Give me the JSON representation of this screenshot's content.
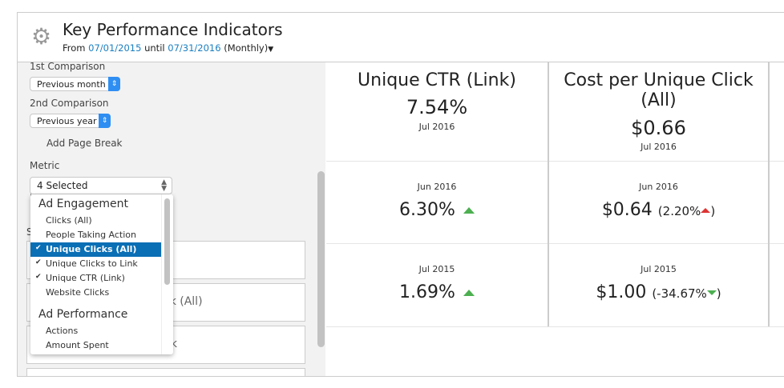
{
  "header": {
    "title": "Key Performance Indicators",
    "from_label": "From",
    "from_date": "07/01/2015",
    "until_label": "until",
    "until_date": "07/31/2016",
    "period": "(Monthly)"
  },
  "left": {
    "first_comparison_label": "1st Comparison",
    "first_comparison_value": "Previous month",
    "second_comparison_label": "2nd Comparison",
    "second_comparison_value": "Previous year",
    "page_break_label": "Add Page Break",
    "page_break_checked": false,
    "metric_label": "Metric",
    "metric_value": "4 Selected",
    "partial_label": "S",
    "partial_boxes": [
      "",
      "ck (All)",
      "nk",
      ""
    ]
  },
  "dropdown": {
    "groups": [
      {
        "label": "Ad Engagement",
        "items": [
          {
            "label": "Clicks (All)",
            "checked": false
          },
          {
            "label": "People Taking Action",
            "checked": false
          },
          {
            "label": "Unique Clicks (All)",
            "checked": true,
            "highlighted": true
          },
          {
            "label": "Unique Clicks to Link",
            "checked": true
          },
          {
            "label": "Unique CTR (Link)",
            "checked": true
          },
          {
            "label": "Website Clicks",
            "checked": false
          }
        ]
      },
      {
        "label": "Ad Performance",
        "items": [
          {
            "label": "Actions",
            "checked": false
          },
          {
            "label": "Amount Spent",
            "checked": false
          }
        ]
      }
    ]
  },
  "kpis": [
    {
      "title": "Unique CTR (Link)",
      "current": "7.54%",
      "current_period": "Jul 2016",
      "cmp1_period": "Jun 2016",
      "cmp1_value": "6.30%",
      "cmp1_trend": "up",
      "cmp2_period": "Jul 2015",
      "cmp2_value": "1.69%",
      "cmp2_trend": "up"
    },
    {
      "title": "Cost per Unique Click (All)",
      "current": "$0.66",
      "current_period": "Jul 2016",
      "cmp1_period": "Jun 2016",
      "cmp1_value": "$0.64",
      "cmp1_change": "(2.20%",
      "cmp1_close": ")",
      "cmp1_trend": "up-bad",
      "cmp2_period": "Jul 2015",
      "cmp2_value": "$1.00",
      "cmp2_change": "(-34.67%",
      "cmp2_close": ")",
      "cmp2_trend": "down-good"
    }
  ],
  "colors": {
    "link": "#1a7fc1",
    "highlight": "#0a6fb5",
    "up_good": "#4caf50",
    "up_bad": "#d33333",
    "select_arrow": "#2f8ef2"
  }
}
